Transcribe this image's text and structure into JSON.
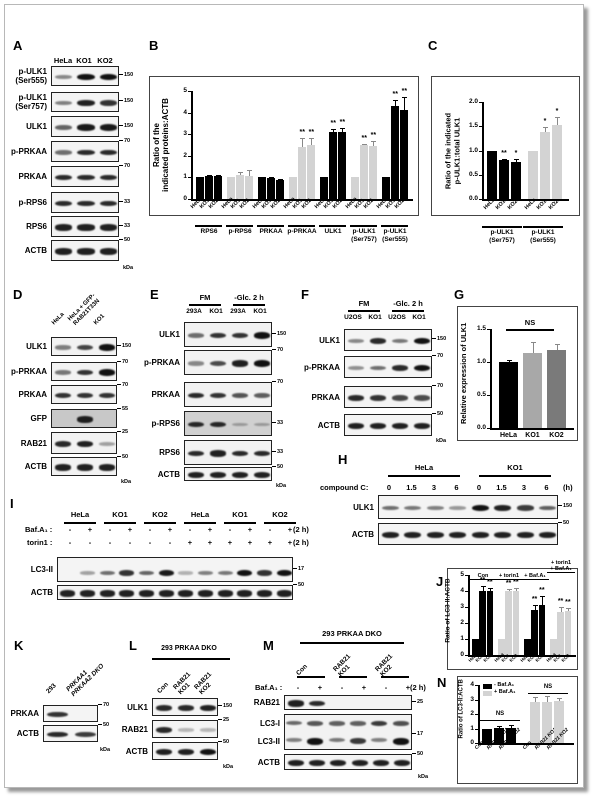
{
  "panels": {
    "A": {
      "label": "A",
      "lanes": [
        "HeLa",
        "KO1",
        "KO2"
      ],
      "rows": [
        {
          "name": "p-ULK1\n(Ser555)",
          "mw": "150"
        },
        {
          "name": "p-ULK1\n(Ser757)",
          "mw": "150"
        },
        {
          "name": "ULK1",
          "mw": "150"
        },
        {
          "name": "p-PRKAA",
          "mw": "70"
        },
        {
          "name": "PRKAA",
          "mw": "70"
        },
        {
          "name": "p-RPS6",
          "mw": "33"
        },
        {
          "name": "RPS6",
          "mw": "33"
        },
        {
          "name": "ACTB",
          "mw": "50"
        }
      ],
      "kda": "kDa"
    },
    "B": {
      "label": "B"
    },
    "C": {
      "label": "C"
    },
    "D": {
      "label": "D",
      "lanes": [
        "HeLa",
        "HeLa + GFP-\nRAB21T33N",
        "KO1"
      ],
      "rows": [
        {
          "name": "ULK1",
          "mw": "150"
        },
        {
          "name": "p-PRKAA",
          "mw": "70"
        },
        {
          "name": "PRKAA",
          "mw": "70"
        },
        {
          "name": "GFP",
          "mw": "55"
        },
        {
          "name": "RAB21",
          "mw": "25"
        },
        {
          "name": "ACTB",
          "mw": "50"
        }
      ],
      "kda": "kDa"
    },
    "E": {
      "label": "E",
      "groups": [
        "FM",
        "-Glc.  2 h"
      ],
      "lanes": [
        "293A",
        "KO1",
        "293A",
        "KO1"
      ],
      "rows": [
        {
          "name": "ULK1",
          "mw": "150"
        },
        {
          "name": "p-PRKAA",
          "mw": "70"
        },
        {
          "name": "PRKAA",
          "mw": "70"
        },
        {
          "name": "p-RPS6",
          "mw": "33"
        },
        {
          "name": "RPS6",
          "mw": "33"
        },
        {
          "name": "ACTB",
          "mw": "50"
        }
      ],
      "kda": "kDa"
    },
    "F": {
      "label": "F",
      "groups": [
        "FM",
        "-Glc.  2 h"
      ],
      "lanes": [
        "U2OS",
        "KO1",
        "U2OS",
        "KO1"
      ],
      "rows": [
        {
          "name": "ULK1",
          "mw": "150"
        },
        {
          "name": "p-PRKAA",
          "mw": "70"
        },
        {
          "name": "PRKAA",
          "mw": "70"
        },
        {
          "name": "ACTB",
          "mw": "50"
        }
      ],
      "kda": "kDa"
    },
    "G": {
      "label": "G"
    },
    "H": {
      "label": "H",
      "groups": [
        "HeLa",
        "KO1"
      ],
      "condition_label": "compound C:",
      "timepoints": [
        "0",
        "1.5",
        "3",
        "6",
        "0",
        "1.5",
        "3",
        "6"
      ],
      "unit": "(h)",
      "rows": [
        {
          "name": "ULK1",
          "mw": "150"
        },
        {
          "name": "ACTB",
          "mw": "50"
        }
      ]
    },
    "I": {
      "label": "I",
      "groups": [
        "HeLa",
        "KO1",
        "KO2",
        "HeLa",
        "KO1",
        "KO2"
      ],
      "baf_label": "Baf.A₁ :",
      "torin_label": "torin1 :",
      "baf_signs": [
        "-",
        "+",
        "-",
        "+",
        "-",
        "+",
        "-",
        "+",
        "-",
        "+",
        "-",
        "+"
      ],
      "torin_signs": [
        "-",
        "-",
        "-",
        "-",
        "-",
        "-",
        "+",
        "+",
        "+",
        "+",
        "+",
        "+"
      ],
      "unit_baf": "(2 h)",
      "unit_torin": "(2 h)",
      "rows": [
        {
          "name": "LC3-II",
          "mw": "17"
        },
        {
          "name": "ACTB",
          "mw": "50"
        }
      ]
    },
    "J": {
      "label": "J"
    },
    "K": {
      "label": "K",
      "lanes": [
        "293",
        "PRKAA1\nPRKAA2 DKO"
      ],
      "rows": [
        {
          "name": "PRKAA",
          "mw": "70"
        },
        {
          "name": "ACTB",
          "mw": "50"
        }
      ],
      "kda": "kDa"
    },
    "L": {
      "label": "L",
      "header": "293 PRKAA DKO",
      "lanes": [
        "Con",
        "RAB21\nKO1",
        "RAB21\nKO2"
      ],
      "rows": [
        {
          "name": "ULK1",
          "mw": "150"
        },
        {
          "name": "RAB21",
          "mw": "25"
        },
        {
          "name": "ACTB",
          "mw": "50"
        }
      ],
      "kda": "kDa"
    },
    "M": {
      "label": "M",
      "header": "293 PRKAA DKO",
      "groups": [
        "Con",
        "RAB21\nKO1",
        "RAB21\nKO2"
      ],
      "baf_label": "Baf.A₁ :",
      "baf_signs": [
        "-",
        "+",
        "-",
        "+",
        "-",
        "+"
      ],
      "unit": "(2 h)",
      "rows": [
        {
          "name": "RAB21",
          "mw": "25"
        },
        {
          "name": "LC3-I",
          "mw": ""
        },
        {
          "name": "LC3-II",
          "mw": "17"
        },
        {
          "name": "ACTB",
          "mw": "50"
        }
      ],
      "kda": "kDa"
    },
    "N": {
      "label": "N"
    }
  },
  "chart_data": [
    {
      "panel": "B",
      "type": "bar",
      "ylabel": "Ratio of the\nindicated proteins:ACTB",
      "ylim": [
        0,
        5
      ],
      "yticks": [
        "0",
        "1",
        "2",
        "3",
        "4",
        "5"
      ],
      "groups": [
        "RPS6",
        "p-RPS6",
        "PRKAA",
        "p-PRKAA",
        "ULK1",
        "p-ULK1\n(Ser757)",
        "p-ULK1\n(Ser555)"
      ],
      "categories": [
        "HeLa",
        "KO1",
        "KO2"
      ],
      "series": [
        {
          "name": "RPS6",
          "values": [
            1.0,
            1.05,
            1.05
          ],
          "errors": [
            0,
            0.05,
            0.05
          ],
          "color": "#000000",
          "stars": [
            "",
            "",
            ""
          ]
        },
        {
          "name": "p-RPS6",
          "values": [
            1.0,
            1.1,
            1.08
          ],
          "errors": [
            0,
            0.15,
            0.25
          ],
          "color": "#d3d3d3",
          "stars": [
            "",
            "",
            ""
          ]
        },
        {
          "name": "PRKAA",
          "values": [
            1.0,
            0.96,
            0.9
          ],
          "errors": [
            0,
            0.05,
            0.03
          ],
          "color": "#000000",
          "stars": [
            "",
            "",
            ""
          ]
        },
        {
          "name": "p-PRKAA",
          "values": [
            1.0,
            2.43,
            2.52
          ],
          "errors": [
            0,
            0.38,
            0.3
          ],
          "color": "#d3d3d3",
          "stars": [
            "",
            "**",
            "**"
          ]
        },
        {
          "name": "ULK1",
          "values": [
            1.0,
            3.1,
            3.1
          ],
          "errors": [
            0,
            0.12,
            0.2
          ],
          "color": "#000000",
          "stars": [
            "",
            "**",
            "**"
          ]
        },
        {
          "name": "p-ULK1 (Ser757)",
          "values": [
            1.0,
            2.48,
            2.47
          ],
          "errors": [
            0,
            0.05,
            0.2
          ],
          "color": "#d3d3d3",
          "stars": [
            "",
            "**",
            "**"
          ]
        },
        {
          "name": "p-ULK1 (Ser555)",
          "values": [
            1.0,
            4.32,
            4.1
          ],
          "errors": [
            0,
            0.25,
            0.6
          ],
          "color": "#000000",
          "stars": [
            "",
            "**",
            "**"
          ]
        }
      ]
    },
    {
      "panel": "C",
      "type": "bar",
      "ylabel": "Ratio of the indicated\np-ULK1:total ULK1",
      "ylim": [
        0,
        2.0
      ],
      "yticks": [
        "0.0",
        "0.5",
        "1.0",
        "1.5",
        "2.0"
      ],
      "groups": [
        "p-ULK1\n(Ser757)",
        "p-ULK1\n(Ser555)"
      ],
      "categories": [
        "HeLa",
        "KO1",
        "KO2"
      ],
      "series": [
        {
          "name": "p-ULK1 (Ser757)",
          "values": [
            1.0,
            0.8,
            0.77
          ],
          "errors": [
            0,
            0.03,
            0.05
          ],
          "color": "#000000",
          "stars": [
            "",
            "**",
            "*"
          ]
        },
        {
          "name": "p-ULK1 (Ser555)",
          "values": [
            1.0,
            1.39,
            1.52
          ],
          "errors": [
            0,
            0.1,
            0.18
          ],
          "color": "#d3d3d3",
          "stars": [
            "",
            "*",
            "*"
          ]
        }
      ]
    },
    {
      "panel": "G",
      "type": "bar",
      "ylabel": "Relative expression of ULK1",
      "ylim": [
        0,
        1.5
      ],
      "yticks": [
        "0.0",
        "0.5",
        "1.0",
        "1.5"
      ],
      "categories": [
        "HeLa",
        "KO1",
        "KO2"
      ],
      "values": [
        1.0,
        1.14,
        1.18
      ],
      "errors": [
        0.03,
        0.16,
        0.1
      ],
      "colors": [
        "#000000",
        "#a8a8a8",
        "#7a7a7a"
      ],
      "annotation": "NS"
    },
    {
      "panel": "J",
      "type": "bar",
      "ylabel": "Ratio of LC3-II:ACTB",
      "ylim": [
        0,
        5
      ],
      "yticks": [
        "0",
        "1",
        "2",
        "3",
        "4",
        "5"
      ],
      "groups": [
        "Con",
        "+ torin1",
        "+ Baf.A₁",
        "+ torin1\n+ Baf.A₁"
      ],
      "categories": [
        "HeLa",
        "KO1",
        "KO2"
      ],
      "series": [
        {
          "name": "Con",
          "values": [
            1.0,
            4.02,
            3.98
          ],
          "errors": [
            0,
            0.3,
            0.2
          ],
          "color": "#000000",
          "stars": [
            "",
            "**",
            "**"
          ]
        },
        {
          "name": "+ torin1",
          "values": [
            1.0,
            4.0,
            4.0
          ],
          "errors": [
            0,
            0.15,
            0.2
          ],
          "color": "#d3d3d3",
          "stars": [
            "",
            "**",
            "**"
          ]
        },
        {
          "name": "+ Baf.A1",
          "values": [
            1.0,
            2.8,
            3.1
          ],
          "errors": [
            0,
            0.35,
            0.6
          ],
          "color": "#000000",
          "stars": [
            "",
            "**",
            "**"
          ]
        },
        {
          "name": "+ torin1 + Baf.A1",
          "values": [
            1.0,
            2.7,
            2.72
          ],
          "errors": [
            0,
            0.3,
            0.2
          ],
          "color": "#d3d3d3",
          "stars": [
            "",
            "**",
            "**"
          ]
        }
      ]
    },
    {
      "panel": "N",
      "type": "bar",
      "ylabel": "Ratio of LC3-II:ACTB",
      "ylim": [
        0,
        4
      ],
      "yticks": [
        "0",
        "1",
        "2",
        "3",
        "4"
      ],
      "categories": [
        "Con",
        "RAB21 KO1",
        "RAB21 KO2"
      ],
      "legend": [
        "- Baf.A₁",
        "+ Baf.A₁"
      ],
      "series": [
        {
          "name": "- Baf.A1",
          "values": [
            1.0,
            1.05,
            1.05
          ],
          "errors": [
            0,
            0.12,
            0.2
          ],
          "color": "#000000"
        },
        {
          "name": "+ Baf.A1",
          "values": [
            2.85,
            2.85,
            2.88
          ],
          "errors": [
            0.3,
            0.4,
            0.22
          ],
          "color": "#d3d3d3"
        }
      ],
      "annotations": [
        "NS",
        "NS"
      ]
    }
  ]
}
